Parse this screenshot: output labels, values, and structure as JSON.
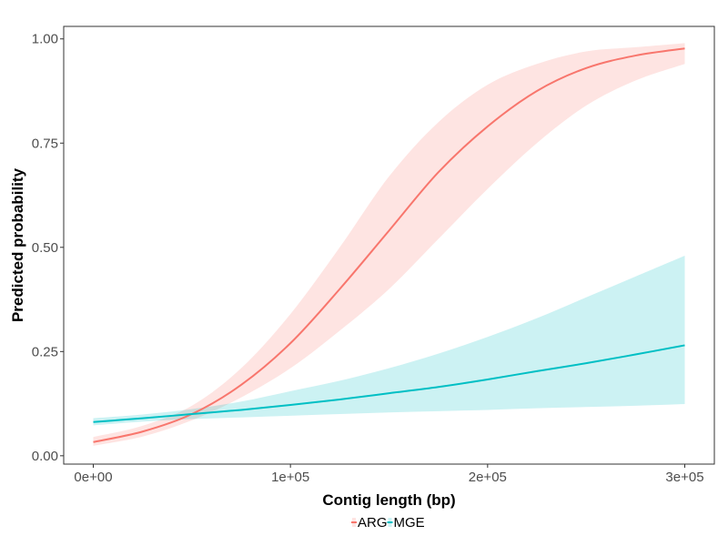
{
  "chart_data": {
    "type": "line",
    "xlabel": "Contig length (bp)",
    "ylabel": "Predicted probability",
    "xlim": [
      -15000,
      315000
    ],
    "ylim": [
      -0.02,
      1.03
    ],
    "x_ticks": [
      0,
      100000,
      200000,
      300000
    ],
    "x_tick_labels": [
      "0e+00",
      "1e+05",
      "2e+05",
      "3e+05"
    ],
    "y_ticks": [
      0,
      0.25,
      0.5,
      0.75,
      1.0
    ],
    "y_tick_labels": [
      "0.00",
      "0.25",
      "0.50",
      "0.75",
      "1.00"
    ],
    "grid": false,
    "legend_position": "bottom",
    "series": [
      {
        "name": "ARG",
        "color": "#F8766D",
        "x": [
          0,
          25000,
          50000,
          75000,
          100000,
          125000,
          150000,
          175000,
          200000,
          225000,
          250000,
          275000,
          300000
        ],
        "y": [
          0.033,
          0.058,
          0.1,
          0.17,
          0.27,
          0.4,
          0.54,
          0.68,
          0.79,
          0.875,
          0.93,
          0.96,
          0.977
        ],
        "lower": [
          0.024,
          0.046,
          0.085,
          0.14,
          0.21,
          0.3,
          0.4,
          0.52,
          0.64,
          0.75,
          0.84,
          0.9,
          0.94
        ],
        "upper": [
          0.045,
          0.072,
          0.12,
          0.21,
          0.34,
          0.5,
          0.67,
          0.8,
          0.89,
          0.94,
          0.97,
          0.98,
          0.99
        ]
      },
      {
        "name": "MGE",
        "color": "#00BFC4",
        "x": [
          0,
          25000,
          50000,
          75000,
          100000,
          125000,
          150000,
          175000,
          200000,
          225000,
          250000,
          275000,
          300000
        ],
        "y": [
          0.081,
          0.09,
          0.1,
          0.11,
          0.122,
          0.135,
          0.15,
          0.165,
          0.183,
          0.203,
          0.222,
          0.243,
          0.265
        ],
        "lower": [
          0.073,
          0.082,
          0.088,
          0.092,
          0.096,
          0.1,
          0.104,
          0.107,
          0.11,
          0.114,
          0.117,
          0.12,
          0.124
        ],
        "upper": [
          0.09,
          0.099,
          0.112,
          0.13,
          0.155,
          0.18,
          0.21,
          0.245,
          0.285,
          0.33,
          0.38,
          0.43,
          0.48
        ]
      }
    ]
  }
}
